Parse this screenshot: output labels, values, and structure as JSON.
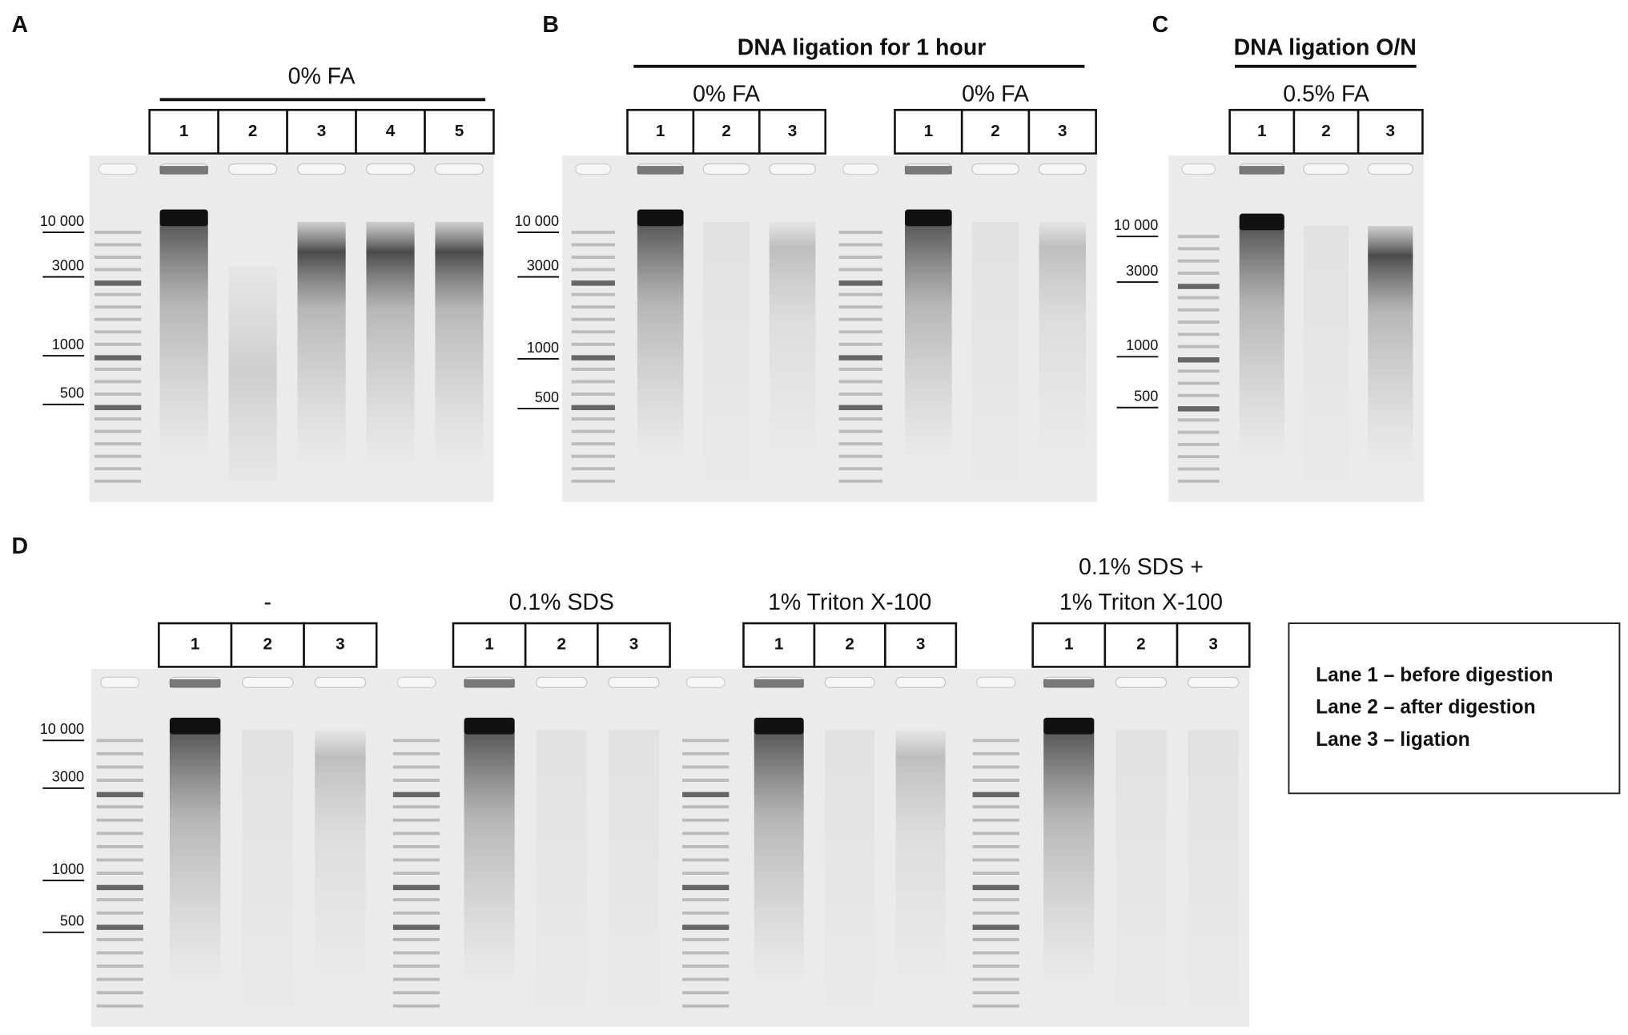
{
  "panels": [
    {
      "label": "A",
      "groups": [
        {
          "title": "0% FA",
          "lanes": [
            "1",
            "2",
            "3",
            "4",
            "5"
          ]
        }
      ],
      "markers": [
        "10 000",
        "3000",
        "1000",
        "500"
      ]
    },
    {
      "label": "B",
      "title": "DNA ligation for 1 hour",
      "groups": [
        {
          "title": "0% FA",
          "lanes": [
            "1",
            "2",
            "3"
          ]
        },
        {
          "title": "0% FA",
          "lanes": [
            "1",
            "2",
            "3"
          ]
        }
      ],
      "markers": [
        "10 000",
        "3000",
        "1000",
        "500"
      ]
    },
    {
      "label": "C",
      "title": "DNA ligation O/N",
      "groups": [
        {
          "title": "0.5% FA",
          "lanes": [
            "1",
            "2",
            "3"
          ]
        }
      ],
      "markers": [
        "10 000",
        "3000",
        "1000",
        "500"
      ]
    },
    {
      "label": "D",
      "groups": [
        {
          "title": "-",
          "lanes": [
            "1",
            "2",
            "3"
          ]
        },
        {
          "title": "0.1% SDS",
          "lanes": [
            "1",
            "2",
            "3"
          ]
        },
        {
          "title": "1% Triton X-100",
          "lanes": [
            "1",
            "2",
            "3"
          ]
        },
        {
          "title_lines": [
            "0.1% SDS +",
            "1% Triton X-100"
          ],
          "lanes": [
            "1",
            "2",
            "3"
          ]
        }
      ],
      "markers": [
        "10 000",
        "3000",
        "1000",
        "500"
      ]
    }
  ],
  "legend": [
    "Lane 1 – before digestion",
    "Lane 2 – after digestion",
    "Lane 3 – ligation"
  ]
}
